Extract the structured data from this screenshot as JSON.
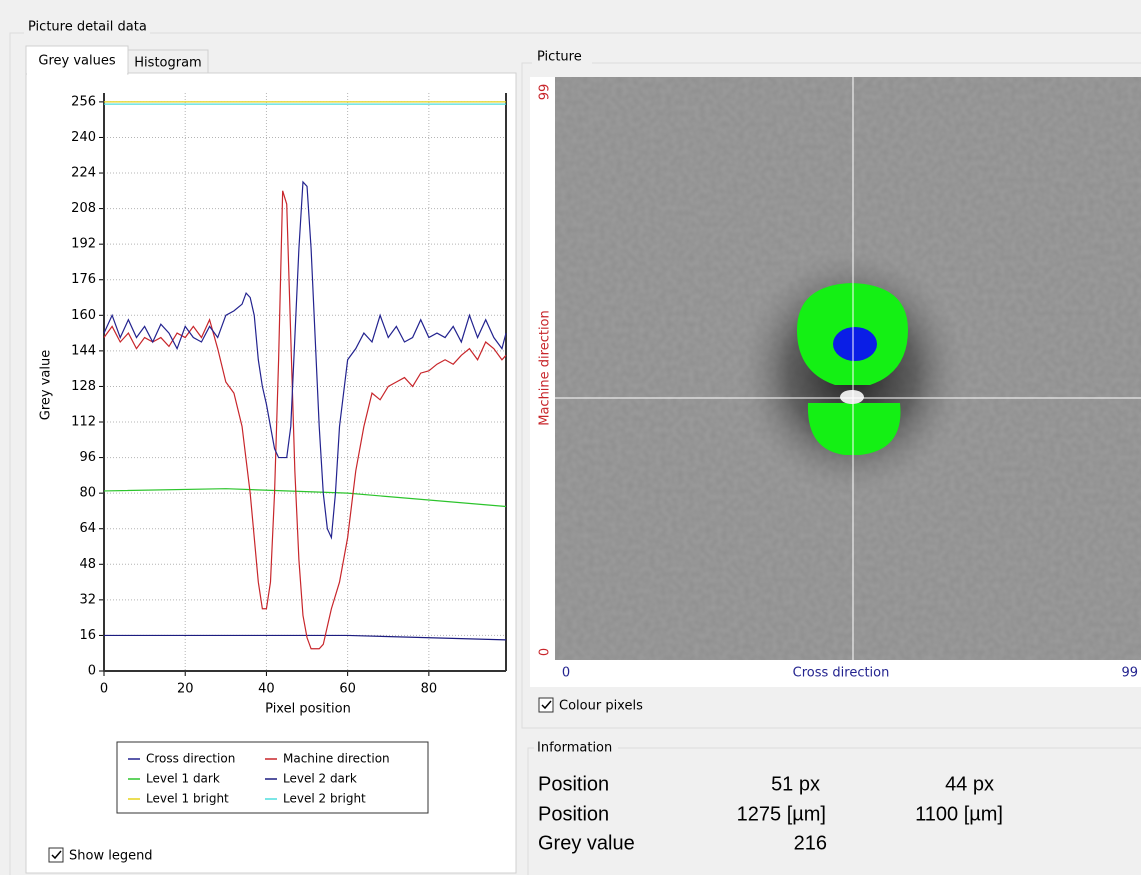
{
  "window": {
    "group_title": "Picture detail data",
    "tabs": [
      "Grey values",
      "Histogram"
    ],
    "show_legend": "Show legend"
  },
  "chart_data": {
    "type": "line",
    "xlabel": "Pixel position",
    "ylabel": "Grey value",
    "x": [
      0,
      2,
      4,
      6,
      8,
      10,
      12,
      14,
      16,
      18,
      20,
      22,
      24,
      26,
      28,
      30,
      32,
      34,
      35,
      36,
      37,
      38,
      39,
      40,
      41,
      42,
      43,
      44,
      45,
      46,
      47,
      48,
      49,
      50,
      51,
      52,
      53,
      54,
      55,
      56,
      57,
      58,
      60,
      62,
      64,
      66,
      68,
      70,
      72,
      74,
      76,
      78,
      80,
      82,
      84,
      86,
      88,
      90,
      92,
      94,
      96,
      98,
      99
    ],
    "xlim": [
      0,
      99
    ],
    "xticks": [
      0,
      20,
      40,
      60,
      80
    ],
    "ylim": [
      0,
      260
    ],
    "yticks": [
      0,
      16,
      32,
      48,
      64,
      80,
      96,
      112,
      128,
      144,
      160,
      176,
      192,
      208,
      224,
      240,
      256
    ],
    "grid": true,
    "legend": "bottom",
    "series": [
      {
        "name": "Cross direction",
        "color": "#23238f",
        "values": [
          152,
          160,
          150,
          158,
          150,
          155,
          148,
          156,
          152,
          145,
          155,
          150,
          148,
          155,
          150,
          160,
          162,
          165,
          170,
          168,
          160,
          140,
          128,
          120,
          110,
          100,
          96,
          96,
          96,
          110,
          150,
          190,
          220,
          218,
          190,
          150,
          110,
          80,
          64,
          60,
          80,
          110,
          140,
          145,
          152,
          148,
          160,
          150,
          155,
          148,
          150,
          158,
          150,
          152,
          150,
          155,
          148,
          160,
          150,
          158,
          150,
          145,
          152
        ]
      },
      {
        "name": "Machine direction",
        "color": "#c8262b",
        "values": [
          150,
          155,
          148,
          152,
          145,
          150,
          148,
          150,
          146,
          152,
          150,
          155,
          150,
          158,
          145,
          130,
          125,
          110,
          95,
          80,
          60,
          40,
          28,
          28,
          40,
          80,
          140,
          216,
          210,
          150,
          90,
          50,
          25,
          15,
          10,
          10,
          10,
          12,
          20,
          28,
          34,
          40,
          60,
          90,
          110,
          125,
          122,
          128,
          130,
          132,
          128,
          134,
          135,
          138,
          140,
          138,
          142,
          145,
          140,
          148,
          145,
          140,
          142
        ]
      },
      {
        "name": "Level 1 dark",
        "color": "#2cc42c",
        "x": [
          0,
          30,
          60,
          99
        ],
        "values": [
          81,
          82,
          80,
          74
        ]
      },
      {
        "name": "Level 2 dark",
        "color": "#1c1c80",
        "x": [
          0,
          30,
          60,
          99
        ],
        "values": [
          16,
          16,
          16,
          14
        ]
      },
      {
        "name": "Level 1 bright",
        "color": "#e6d21c",
        "x": [
          0,
          99
        ],
        "values": [
          256,
          256
        ]
      },
      {
        "name": "Level 2 bright",
        "color": "#4fdede",
        "x": [
          0,
          99
        ],
        "values": [
          255,
          255
        ]
      }
    ]
  },
  "picture": {
    "title": "Picture",
    "y_axis_label": "Machine direction",
    "y_top": "99",
    "y_bottom": "0",
    "x_axis_label": "Cross direction",
    "x_left": "0",
    "x_right": "99",
    "colour_pixels": "Colour pixels"
  },
  "information": {
    "title": "Information",
    "rows": [
      [
        "Position",
        "51 px",
        "44 px"
      ],
      [
        "Position",
        "1275 [µm]",
        "1100 [µm]"
      ],
      [
        "Grey value",
        "216"
      ]
    ]
  }
}
